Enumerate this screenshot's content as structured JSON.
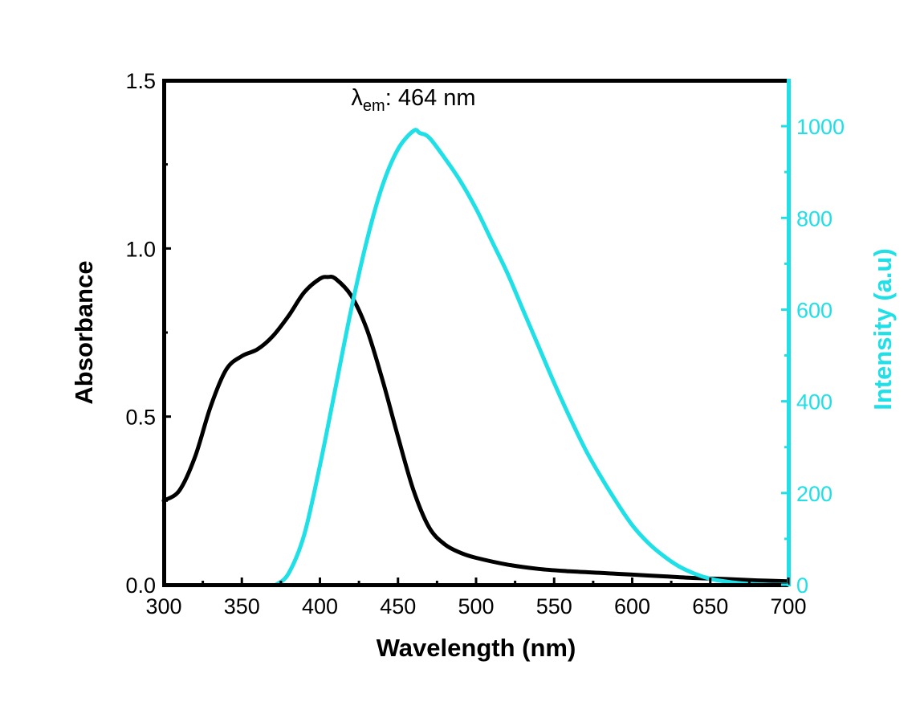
{
  "chart_data": {
    "type": "line",
    "title": "",
    "xlabel": "Wavelength (nm)",
    "ylabel_left": "Absorbance",
    "ylabel_right": "Intensity (a.u)",
    "xlim": [
      300,
      700
    ],
    "ylim_left": [
      0,
      1.5
    ],
    "ylim_right": [
      0,
      1100
    ],
    "x_ticks": [
      300,
      350,
      400,
      450,
      500,
      550,
      600,
      650,
      700
    ],
    "x_tick_labels": [
      "300",
      "350",
      "400",
      "450",
      "500",
      "550",
      "600",
      "650",
      "700"
    ],
    "y_left_ticks": [
      0,
      0.5,
      1.0,
      1.5
    ],
    "y_left_tick_labels": [
      "0.0",
      "0.5",
      "1.0",
      "1.5"
    ],
    "y_right_ticks": [
      0,
      200,
      400,
      600,
      800,
      1000
    ],
    "y_right_tick_labels": [
      "0",
      "200",
      "400",
      "600",
      "800",
      "1000"
    ],
    "grid": false,
    "annotation": {
      "symbol": "λ",
      "subscript": "em",
      "text": ": 464 nm",
      "x": 464,
      "y": 1060
    },
    "colors": {
      "absorbance": "#000000",
      "emission": "#1ee0e6"
    },
    "series": [
      {
        "axis": "left",
        "color": "#000000",
        "x": [
          300,
          310,
          320,
          330,
          340,
          350,
          360,
          370,
          380,
          390,
          400,
          405,
          410,
          420,
          430,
          440,
          450,
          460,
          470,
          480,
          490,
          500,
          520,
          540,
          560,
          580,
          600,
          620,
          640,
          660,
          680,
          700
        ],
        "y": [
          0.25,
          0.28,
          0.38,
          0.53,
          0.64,
          0.68,
          0.7,
          0.74,
          0.8,
          0.87,
          0.91,
          0.915,
          0.91,
          0.86,
          0.76,
          0.61,
          0.44,
          0.28,
          0.17,
          0.12,
          0.095,
          0.08,
          0.06,
          0.047,
          0.04,
          0.035,
          0.03,
          0.025,
          0.02,
          0.017,
          0.013,
          0.01
        ]
      },
      {
        "axis": "right",
        "color": "#1ee0e6",
        "x": [
          372,
          380,
          390,
          400,
          410,
          420,
          430,
          440,
          450,
          460,
          464,
          470,
          480,
          490,
          500,
          510,
          520,
          530,
          540,
          550,
          560,
          570,
          580,
          590,
          600,
          610,
          620,
          630,
          640,
          650,
          660,
          670,
          680,
          690,
          700
        ],
        "y": [
          0,
          25,
          110,
          260,
          430,
          600,
          750,
          870,
          950,
          990,
          985,
          975,
          930,
          880,
          820,
          750,
          680,
          600,
          520,
          440,
          365,
          295,
          235,
          180,
          130,
          92,
          63,
          40,
          24,
          13,
          7,
          3,
          1,
          0,
          0
        ]
      }
    ]
  }
}
